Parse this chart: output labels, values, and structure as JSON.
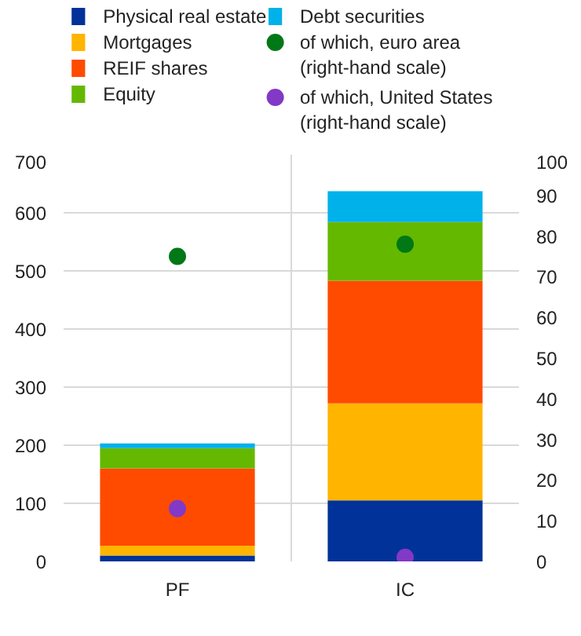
{
  "chart_data": {
    "type": "bar",
    "stacked": true,
    "categories": [
      "PF",
      "IC"
    ],
    "series": [
      {
        "name": "Physical real estate",
        "color": "#003299",
        "values": [
          10,
          105
        ]
      },
      {
        "name": "Mortgages",
        "color": "#ffb400",
        "values": [
          17,
          167
        ]
      },
      {
        "name": "REIF shares",
        "color": "#ff4b00",
        "values": [
          133,
          211
        ]
      },
      {
        "name": "Equity",
        "color": "#65b800",
        "values": [
          35,
          101
        ]
      },
      {
        "name": "Debt securities",
        "color": "#00b1ea",
        "values": [
          8,
          53
        ]
      },
      {
        "name": "of which, euro area (right-hand scale)",
        "type": "scatter",
        "axis": "y2",
        "color": "#007816",
        "values": [
          75,
          78
        ]
      },
      {
        "name": "of which, United States (right-hand scale)",
        "type": "scatter",
        "axis": "y2",
        "color": "#8139c6",
        "values": [
          13,
          1
        ]
      }
    ],
    "ylim": [
      0,
      700
    ],
    "yticks": [
      0,
      100,
      200,
      300,
      400,
      500,
      600,
      700
    ],
    "y2lim": [
      0,
      100
    ],
    "y2ticks": [
      0,
      10,
      20,
      30,
      40,
      50,
      60,
      70,
      80,
      90,
      100
    ],
    "grid": true,
    "legend": "top",
    "marker": "circle"
  }
}
